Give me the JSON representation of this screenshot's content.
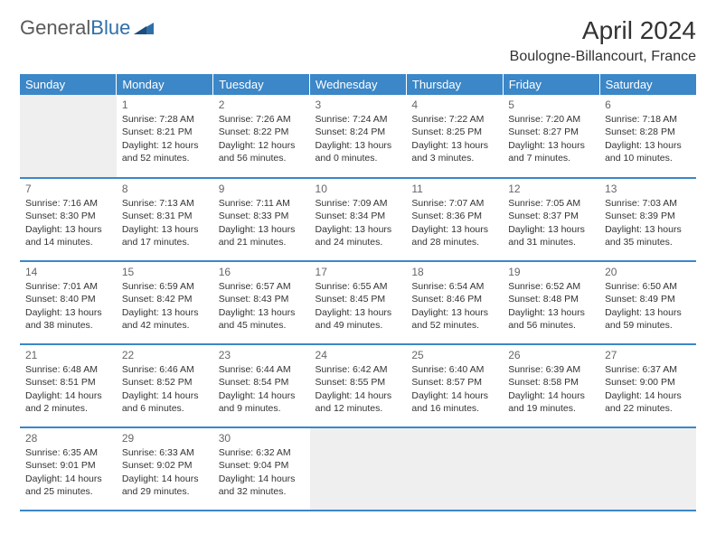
{
  "logo": {
    "text1": "General",
    "text2": "Blue"
  },
  "title": "April 2024",
  "location": "Boulogne-Billancourt, France",
  "theme": {
    "header_bg": "#3b87c8",
    "header_text": "#ffffff",
    "border_color": "#3b87c8",
    "empty_bg": "#efefef",
    "text_color": "#333333",
    "daynum_color": "#666666"
  },
  "weekdays": [
    "Sunday",
    "Monday",
    "Tuesday",
    "Wednesday",
    "Thursday",
    "Friday",
    "Saturday"
  ],
  "weeks": [
    [
      {
        "empty": true
      },
      {
        "day": "1",
        "sunrise": "Sunrise: 7:28 AM",
        "sunset": "Sunset: 8:21 PM",
        "daylight": "Daylight: 12 hours and 52 minutes."
      },
      {
        "day": "2",
        "sunrise": "Sunrise: 7:26 AM",
        "sunset": "Sunset: 8:22 PM",
        "daylight": "Daylight: 12 hours and 56 minutes."
      },
      {
        "day": "3",
        "sunrise": "Sunrise: 7:24 AM",
        "sunset": "Sunset: 8:24 PM",
        "daylight": "Daylight: 13 hours and 0 minutes."
      },
      {
        "day": "4",
        "sunrise": "Sunrise: 7:22 AM",
        "sunset": "Sunset: 8:25 PM",
        "daylight": "Daylight: 13 hours and 3 minutes."
      },
      {
        "day": "5",
        "sunrise": "Sunrise: 7:20 AM",
        "sunset": "Sunset: 8:27 PM",
        "daylight": "Daylight: 13 hours and 7 minutes."
      },
      {
        "day": "6",
        "sunrise": "Sunrise: 7:18 AM",
        "sunset": "Sunset: 8:28 PM",
        "daylight": "Daylight: 13 hours and 10 minutes."
      }
    ],
    [
      {
        "day": "7",
        "sunrise": "Sunrise: 7:16 AM",
        "sunset": "Sunset: 8:30 PM",
        "daylight": "Daylight: 13 hours and 14 minutes."
      },
      {
        "day": "8",
        "sunrise": "Sunrise: 7:13 AM",
        "sunset": "Sunset: 8:31 PM",
        "daylight": "Daylight: 13 hours and 17 minutes."
      },
      {
        "day": "9",
        "sunrise": "Sunrise: 7:11 AM",
        "sunset": "Sunset: 8:33 PM",
        "daylight": "Daylight: 13 hours and 21 minutes."
      },
      {
        "day": "10",
        "sunrise": "Sunrise: 7:09 AM",
        "sunset": "Sunset: 8:34 PM",
        "daylight": "Daylight: 13 hours and 24 minutes."
      },
      {
        "day": "11",
        "sunrise": "Sunrise: 7:07 AM",
        "sunset": "Sunset: 8:36 PM",
        "daylight": "Daylight: 13 hours and 28 minutes."
      },
      {
        "day": "12",
        "sunrise": "Sunrise: 7:05 AM",
        "sunset": "Sunset: 8:37 PM",
        "daylight": "Daylight: 13 hours and 31 minutes."
      },
      {
        "day": "13",
        "sunrise": "Sunrise: 7:03 AM",
        "sunset": "Sunset: 8:39 PM",
        "daylight": "Daylight: 13 hours and 35 minutes."
      }
    ],
    [
      {
        "day": "14",
        "sunrise": "Sunrise: 7:01 AM",
        "sunset": "Sunset: 8:40 PM",
        "daylight": "Daylight: 13 hours and 38 minutes."
      },
      {
        "day": "15",
        "sunrise": "Sunrise: 6:59 AM",
        "sunset": "Sunset: 8:42 PM",
        "daylight": "Daylight: 13 hours and 42 minutes."
      },
      {
        "day": "16",
        "sunrise": "Sunrise: 6:57 AM",
        "sunset": "Sunset: 8:43 PM",
        "daylight": "Daylight: 13 hours and 45 minutes."
      },
      {
        "day": "17",
        "sunrise": "Sunrise: 6:55 AM",
        "sunset": "Sunset: 8:45 PM",
        "daylight": "Daylight: 13 hours and 49 minutes."
      },
      {
        "day": "18",
        "sunrise": "Sunrise: 6:54 AM",
        "sunset": "Sunset: 8:46 PM",
        "daylight": "Daylight: 13 hours and 52 minutes."
      },
      {
        "day": "19",
        "sunrise": "Sunrise: 6:52 AM",
        "sunset": "Sunset: 8:48 PM",
        "daylight": "Daylight: 13 hours and 56 minutes."
      },
      {
        "day": "20",
        "sunrise": "Sunrise: 6:50 AM",
        "sunset": "Sunset: 8:49 PM",
        "daylight": "Daylight: 13 hours and 59 minutes."
      }
    ],
    [
      {
        "day": "21",
        "sunrise": "Sunrise: 6:48 AM",
        "sunset": "Sunset: 8:51 PM",
        "daylight": "Daylight: 14 hours and 2 minutes."
      },
      {
        "day": "22",
        "sunrise": "Sunrise: 6:46 AM",
        "sunset": "Sunset: 8:52 PM",
        "daylight": "Daylight: 14 hours and 6 minutes."
      },
      {
        "day": "23",
        "sunrise": "Sunrise: 6:44 AM",
        "sunset": "Sunset: 8:54 PM",
        "daylight": "Daylight: 14 hours and 9 minutes."
      },
      {
        "day": "24",
        "sunrise": "Sunrise: 6:42 AM",
        "sunset": "Sunset: 8:55 PM",
        "daylight": "Daylight: 14 hours and 12 minutes."
      },
      {
        "day": "25",
        "sunrise": "Sunrise: 6:40 AM",
        "sunset": "Sunset: 8:57 PM",
        "daylight": "Daylight: 14 hours and 16 minutes."
      },
      {
        "day": "26",
        "sunrise": "Sunrise: 6:39 AM",
        "sunset": "Sunset: 8:58 PM",
        "daylight": "Daylight: 14 hours and 19 minutes."
      },
      {
        "day": "27",
        "sunrise": "Sunrise: 6:37 AM",
        "sunset": "Sunset: 9:00 PM",
        "daylight": "Daylight: 14 hours and 22 minutes."
      }
    ],
    [
      {
        "day": "28",
        "sunrise": "Sunrise: 6:35 AM",
        "sunset": "Sunset: 9:01 PM",
        "daylight": "Daylight: 14 hours and 25 minutes."
      },
      {
        "day": "29",
        "sunrise": "Sunrise: 6:33 AM",
        "sunset": "Sunset: 9:02 PM",
        "daylight": "Daylight: 14 hours and 29 minutes."
      },
      {
        "day": "30",
        "sunrise": "Sunrise: 6:32 AM",
        "sunset": "Sunset: 9:04 PM",
        "daylight": "Daylight: 14 hours and 32 minutes."
      },
      {
        "empty": true
      },
      {
        "empty": true
      },
      {
        "empty": true
      },
      {
        "empty": true
      }
    ]
  ]
}
